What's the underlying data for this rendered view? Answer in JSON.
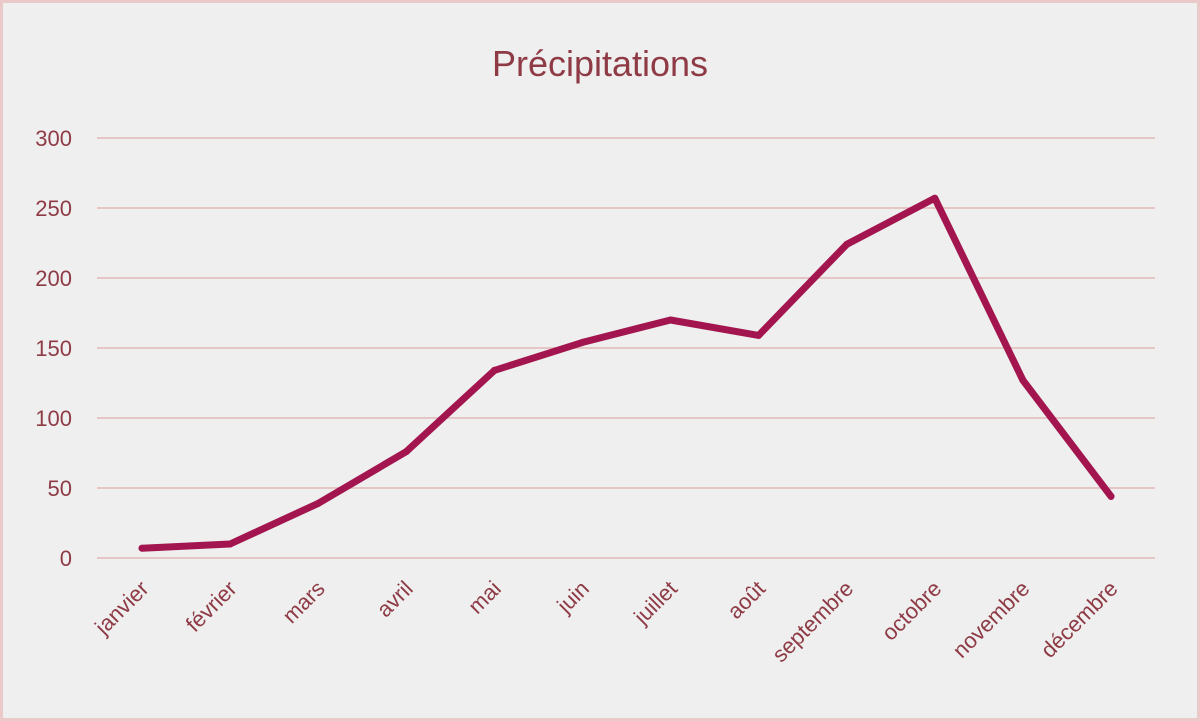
{
  "chart_data": {
    "type": "line",
    "title": "Précipitations",
    "categories": [
      "janvier",
      "février",
      "mars",
      "avril",
      "mai",
      "juin",
      "juillet",
      "août",
      "septembre",
      "octobre",
      "novembre",
      "décembre"
    ],
    "series": [
      {
        "values": [
          7,
          10,
          39,
          76,
          134,
          154,
          170,
          159,
          224,
          257,
          127,
          44
        ]
      }
    ],
    "ylim": [
      0,
      300
    ],
    "yticks": [
      0,
      50,
      100,
      150,
      200,
      250,
      300
    ],
    "grid": true,
    "legend": "none"
  },
  "colors": {
    "line": "#a3154f",
    "text": "#8e3b46",
    "grid": "#e6c5c5",
    "background": "#efefef",
    "border": "#ecc9c9"
  }
}
